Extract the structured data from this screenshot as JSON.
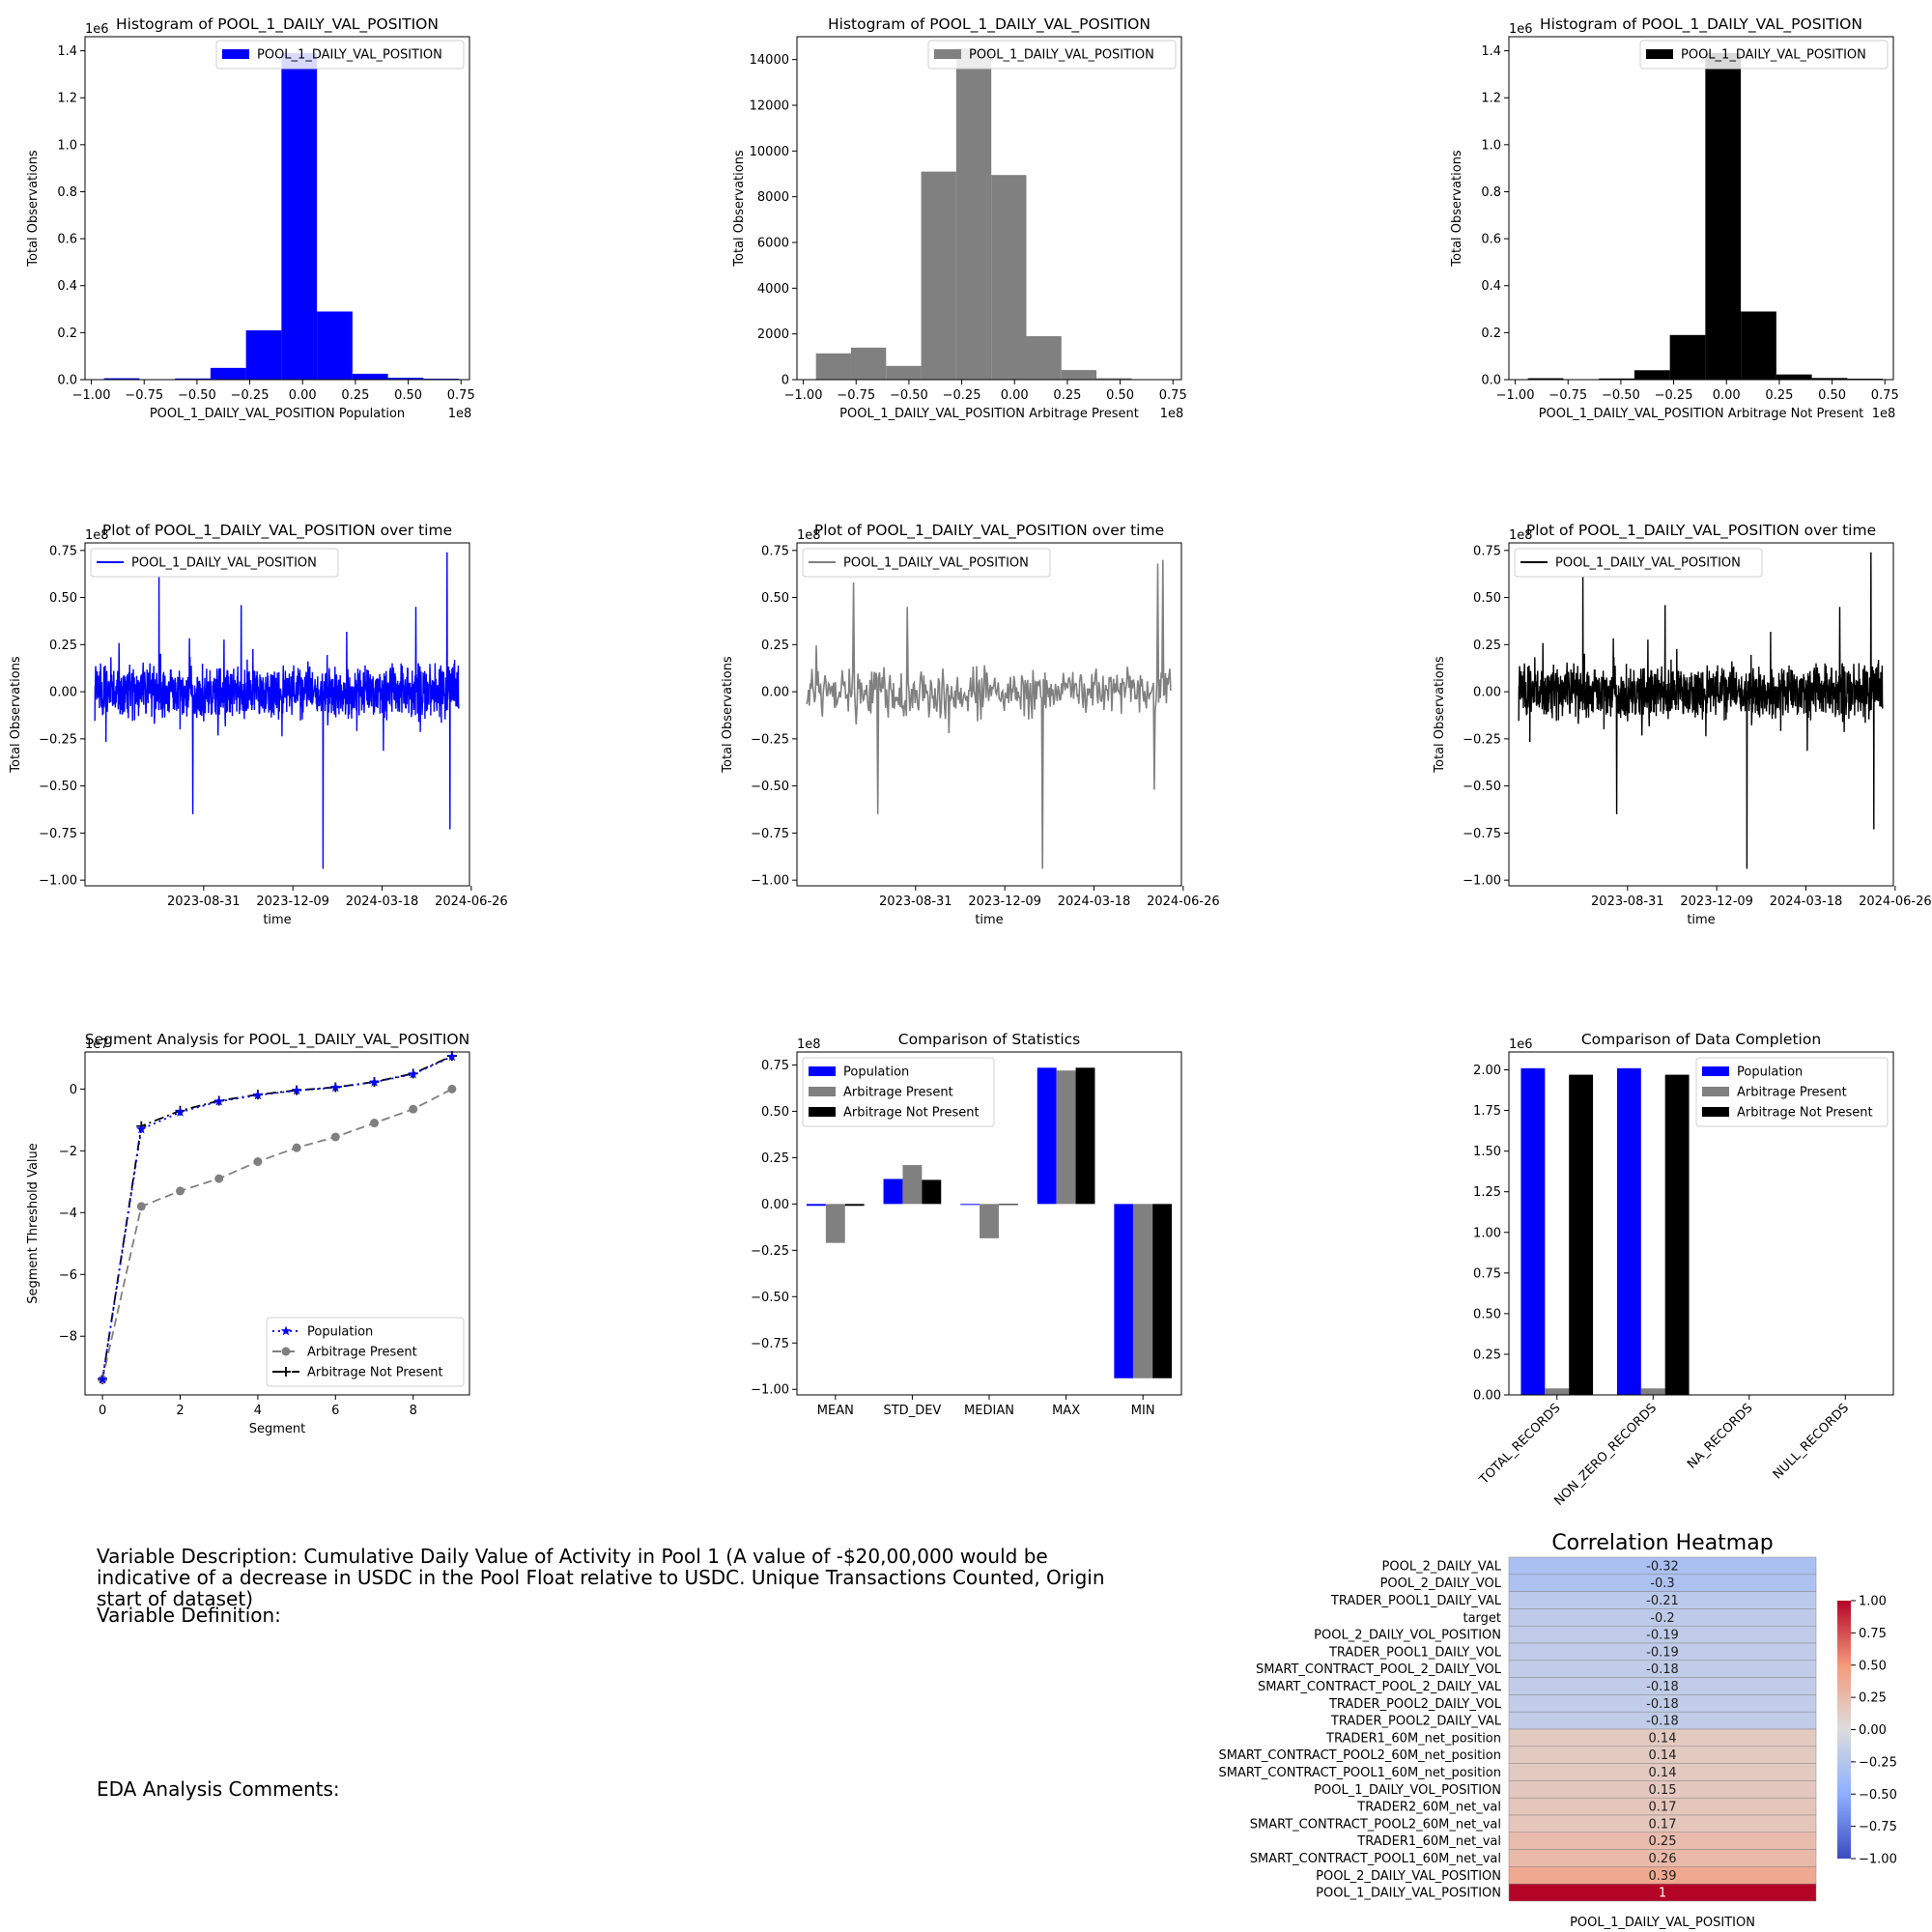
{
  "chart_data": [
    {
      "id": "hist_pop",
      "type": "bar",
      "title": "Histogram of POOL_1_DAILY_VAL_POSITION",
      "xlabel": "POOL_1_DAILY_VAL_POSITION Population",
      "ylabel": "Total Observations",
      "x_exponent": "1e8",
      "y_exponent": "1e6",
      "color": "#0000ff",
      "legend": "POOL_1_DAILY_VAL_POSITION",
      "legend_position": "upper-right",
      "xlim": [
        -1.03,
        0.79
      ],
      "ylim": [
        0,
        1.46
      ],
      "xticks": [
        -1.0,
        -0.75,
        -0.5,
        -0.25,
        0.0,
        0.25,
        0.5,
        0.75
      ],
      "xtick_labels": [
        "−1.00",
        "−0.75",
        "−0.50",
        "−0.25",
        "0.00",
        "0.25",
        "0.50",
        "0.75"
      ],
      "yticks": [
        0,
        0.2,
        0.4,
        0.6,
        0.8,
        1.0,
        1.2,
        1.4
      ],
      "ytick_labels": [
        "0.0",
        "0.2",
        "0.4",
        "0.6",
        "0.8",
        "1.0",
        "1.2",
        "1.4"
      ],
      "bin_edges": [
        -0.94,
        -0.772,
        -0.604,
        -0.436,
        -0.268,
        -0.1,
        0.068,
        0.236,
        0.404,
        0.572,
        0.74
      ],
      "values": [
        0.006,
        0.0,
        0.005,
        0.05,
        0.21,
        1.39,
        0.29,
        0.025,
        0.008,
        0.004
      ]
    },
    {
      "id": "hist_arb",
      "type": "bar",
      "title": "Histogram of POOL_1_DAILY_VAL_POSITION",
      "xlabel": "POOL_1_DAILY_VAL_POSITION Arbitrage Present",
      "ylabel": "Total Observations",
      "x_exponent": "1e8",
      "y_exponent": "",
      "color": "#808080",
      "legend": "POOL_1_DAILY_VAL_POSITION",
      "legend_position": "upper-right",
      "xlim": [
        -1.03,
        0.79
      ],
      "ylim": [
        0,
        15000
      ],
      "xticks": [
        -1.0,
        -0.75,
        -0.5,
        -0.25,
        0.0,
        0.25,
        0.5,
        0.75
      ],
      "xtick_labels": [
        "−1.00",
        "−0.75",
        "−0.50",
        "−0.25",
        "0.00",
        "0.25",
        "0.50",
        "0.75"
      ],
      "yticks": [
        0,
        2000,
        4000,
        6000,
        8000,
        10000,
        12000,
        14000
      ],
      "ytick_labels": [
        "0",
        "2000",
        "4000",
        "6000",
        "8000",
        "10000",
        "12000",
        "14000"
      ],
      "bin_edges": [
        -0.94,
        -0.774,
        -0.608,
        -0.442,
        -0.276,
        -0.11,
        0.056,
        0.222,
        0.388,
        0.554,
        0.72
      ],
      "values": [
        1150,
        1400,
        600,
        9100,
        14500,
        8950,
        1900,
        420,
        60,
        20
      ]
    },
    {
      "id": "hist_noarb",
      "type": "bar",
      "title": "Histogram of POOL_1_DAILY_VAL_POSITION",
      "xlabel": "POOL_1_DAILY_VAL_POSITION Arbitrage Not Present",
      "ylabel": "Total Observations",
      "x_exponent": "1e8",
      "y_exponent": "1e6",
      "color": "#000000",
      "legend": "POOL_1_DAILY_VAL_POSITION",
      "legend_position": "upper-right",
      "xlim": [
        -1.03,
        0.79
      ],
      "ylim": [
        0,
        1.46
      ],
      "xticks": [
        -1.0,
        -0.75,
        -0.5,
        -0.25,
        0.0,
        0.25,
        0.5,
        0.75
      ],
      "xtick_labels": [
        "−1.00",
        "−0.75",
        "−0.50",
        "−0.25",
        "0.00",
        "0.25",
        "0.50",
        "0.75"
      ],
      "yticks": [
        0,
        0.2,
        0.4,
        0.6,
        0.8,
        1.0,
        1.2,
        1.4
      ],
      "ytick_labels": [
        "0.0",
        "0.2",
        "0.4",
        "0.6",
        "0.8",
        "1.0",
        "1.2",
        "1.4"
      ],
      "bin_edges": [
        -0.94,
        -0.772,
        -0.604,
        -0.436,
        -0.268,
        -0.1,
        0.068,
        0.236,
        0.404,
        0.572,
        0.74
      ],
      "values": [
        0.006,
        0.0,
        0.005,
        0.04,
        0.19,
        1.39,
        0.29,
        0.022,
        0.007,
        0.004
      ]
    },
    {
      "id": "line_pop",
      "type": "line",
      "title": "Plot of POOL_1_DAILY_VAL_POSITION over time",
      "xlabel": "time",
      "ylabel": "Total Observations",
      "y_exponent": "1e8",
      "color": "#0000ff",
      "legend": "POOL_1_DAILY_VAL_POSITION",
      "legend_position": "upper-left",
      "x_range": [
        "2023-05-01",
        "2024-06-12"
      ],
      "xlim": [
        "2023-04-20",
        "2024-06-24"
      ],
      "ylim": [
        -1.03,
        0.79
      ],
      "xtick_labels": [
        "2023-08-31",
        "2023-12-09",
        "2024-03-18",
        "2024-06-26"
      ],
      "yticks": [
        -1.0,
        -0.75,
        -0.5,
        -0.25,
        0.0,
        0.25,
        0.5,
        0.75
      ],
      "ytick_labels": [
        "−1.00",
        "−0.75",
        "−0.50",
        "−0.25",
        "0.00",
        "0.25",
        "0.50",
        "0.75"
      ],
      "notable_points": [
        {
          "x": "2023-07-12",
          "y": 0.61
        },
        {
          "x": "2023-08-19",
          "y": -0.65
        },
        {
          "x": "2023-10-12",
          "y": 0.46
        },
        {
          "x": "2024-01-12",
          "y": -0.94
        },
        {
          "x": "2024-04-25",
          "y": 0.45
        },
        {
          "x": "2024-05-30",
          "y": 0.74
        },
        {
          "x": "2024-06-02",
          "y": -0.73
        }
      ],
      "noise_amplitude": 0.12
    },
    {
      "id": "line_arb",
      "type": "line",
      "title": "Plot of POOL_1_DAILY_VAL_POSITION over time",
      "xlabel": "time",
      "ylabel": "Total Observations",
      "y_exponent": "1e8",
      "color": "#808080",
      "legend": "POOL_1_DAILY_VAL_POSITION",
      "legend_position": "upper-left",
      "x_range": [
        "2023-05-01",
        "2024-06-12"
      ],
      "xlim": [
        "2023-04-20",
        "2024-06-24"
      ],
      "ylim": [
        -1.03,
        0.79
      ],
      "xtick_labels": [
        "2023-08-31",
        "2023-12-09",
        "2024-03-18",
        "2024-06-26"
      ],
      "yticks": [
        -1.0,
        -0.75,
        -0.5,
        -0.25,
        0.0,
        0.25,
        0.5,
        0.75
      ],
      "ytick_labels": [
        "−1.00",
        "−0.75",
        "−0.50",
        "−0.25",
        "0.00",
        "0.25",
        "0.50",
        "0.75"
      ],
      "notable_points": [
        {
          "x": "2023-06-22",
          "y": 0.58
        },
        {
          "x": "2023-07-20",
          "y": -0.65
        },
        {
          "x": "2023-08-22",
          "y": 0.45
        },
        {
          "x": "2024-01-20",
          "y": -0.94
        },
        {
          "x": "2024-05-28",
          "y": 0.68
        },
        {
          "x": "2024-06-03",
          "y": 0.7
        },
        {
          "x": "2024-05-25",
          "y": -0.52
        }
      ],
      "noise_amplitude": 0.11
    },
    {
      "id": "line_noarb",
      "type": "line",
      "title": "Plot of POOL_1_DAILY_VAL_POSITION over time",
      "xlabel": "time",
      "ylabel": "Total Observations",
      "y_exponent": "1e8",
      "color": "#000000",
      "legend": "POOL_1_DAILY_VAL_POSITION",
      "legend_position": "upper-left",
      "x_range": [
        "2023-05-01",
        "2024-06-12"
      ],
      "xlim": [
        "2023-04-20",
        "2024-06-24"
      ],
      "ylim": [
        -1.03,
        0.79
      ],
      "xtick_labels": [
        "2023-08-31",
        "2023-12-09",
        "2024-03-18",
        "2024-06-26"
      ],
      "yticks": [
        -1.0,
        -0.75,
        -0.5,
        -0.25,
        0.0,
        0.25,
        0.5,
        0.75
      ],
      "ytick_labels": [
        "−1.00",
        "−0.75",
        "−0.50",
        "−0.25",
        "0.00",
        "0.25",
        "0.50",
        "0.75"
      ],
      "notable_points": [
        {
          "x": "2023-07-12",
          "y": 0.61
        },
        {
          "x": "2023-08-19",
          "y": -0.65
        },
        {
          "x": "2023-10-12",
          "y": 0.46
        },
        {
          "x": "2024-01-12",
          "y": -0.94
        },
        {
          "x": "2024-04-25",
          "y": 0.45
        },
        {
          "x": "2024-05-30",
          "y": 0.74
        },
        {
          "x": "2024-06-02",
          "y": -0.73
        }
      ],
      "noise_amplitude": 0.12
    },
    {
      "id": "segments",
      "type": "line",
      "title": "Segment Analysis for POOL_1_DAILY_VAL_POSITION",
      "xlabel": "Segment",
      "ylabel": "Segment Threshold Value",
      "y_exponent": "1e7",
      "legend_position": "lower-right",
      "xlim": [
        -0.45,
        9.45
      ],
      "ylim": [
        -9.9,
        1.2
      ],
      "xticks": [
        0,
        2,
        4,
        6,
        8
      ],
      "xtick_labels": [
        "0",
        "2",
        "4",
        "6",
        "8"
      ],
      "yticks": [
        -8,
        -6,
        -4,
        -2,
        0
      ],
      "ytick_labels": [
        "−8",
        "−6",
        "−4",
        "−2",
        "0"
      ],
      "x": [
        0,
        1,
        2,
        3,
        4,
        5,
        6,
        7,
        8,
        9
      ],
      "series": [
        {
          "name": "Population",
          "color": "#0000ff",
          "dash": "2,4",
          "marker": "star",
          "values": [
            -9.4,
            -1.3,
            -0.75,
            -0.4,
            -0.2,
            -0.05,
            0.05,
            0.22,
            0.48,
            1.05
          ]
        },
        {
          "name": "Arbitrage Present",
          "color": "#808080",
          "dash": "9,5",
          "marker": "circle",
          "values": [
            -9.4,
            -3.8,
            -3.3,
            -2.9,
            -2.35,
            -1.9,
            -1.55,
            -1.1,
            -0.65,
            0.0
          ]
        },
        {
          "name": "Arbitrage Not Present",
          "color": "#000000",
          "dash": "10,4,2,4",
          "marker": "plus",
          "values": [
            -9.4,
            -1.2,
            -0.7,
            -0.38,
            -0.18,
            -0.04,
            0.06,
            0.23,
            0.5,
            1.07
          ]
        }
      ]
    },
    {
      "id": "stats",
      "type": "bar",
      "title": "Comparison of Statistics",
      "y_exponent": "1e8",
      "legend_position": "upper-left",
      "ylim": [
        -1.03,
        0.82
      ],
      "yticks": [
        -1.0,
        -0.75,
        -0.5,
        -0.25,
        0.0,
        0.25,
        0.5,
        0.75
      ],
      "ytick_labels": [
        "−1.00",
        "−0.75",
        "−0.50",
        "−0.25",
        "0.00",
        "0.25",
        "0.50",
        "0.75"
      ],
      "categories": [
        "MEAN",
        "STD_DEV",
        "MEDIAN",
        "MAX",
        "MIN"
      ],
      "series": [
        {
          "name": "Population",
          "color": "#0000ff",
          "values": [
            -0.01,
            0.135,
            -0.005,
            0.735,
            -0.94
          ]
        },
        {
          "name": "Arbitrage Present",
          "color": "#808080",
          "values": [
            -0.21,
            0.21,
            -0.185,
            0.72,
            -0.94
          ]
        },
        {
          "name": "Arbitrage Not Present",
          "color": "#000000",
          "values": [
            -0.01,
            0.13,
            -0.005,
            0.735,
            -0.94
          ]
        }
      ]
    },
    {
      "id": "completion",
      "type": "bar",
      "title": "Comparison of Data Completion",
      "y_exponent": "1e6",
      "legend_position": "upper-right",
      "ylim": [
        0,
        2.11
      ],
      "yticks": [
        0,
        0.25,
        0.5,
        0.75,
        1.0,
        1.25,
        1.5,
        1.75,
        2.0
      ],
      "ytick_labels": [
        "0.00",
        "0.25",
        "0.50",
        "0.75",
        "1.00",
        "1.25",
        "1.50",
        "1.75",
        "2.00"
      ],
      "categories": [
        "TOTAL_RECORDS",
        "NON_ZERO_RECORDS",
        "NA_RECORDS",
        "NULL_RECORDS"
      ],
      "series": [
        {
          "name": "Population",
          "color": "#0000ff",
          "values": [
            2.01,
            2.01,
            0,
            0
          ]
        },
        {
          "name": "Arbitrage Present",
          "color": "#808080",
          "values": [
            0.04,
            0.04,
            0,
            0
          ]
        },
        {
          "name": "Arbitrage Not Present",
          "color": "#000000",
          "values": [
            1.97,
            1.97,
            0,
            0
          ]
        }
      ]
    },
    {
      "id": "heatmap",
      "type": "heatmap",
      "title": "Correlation Heatmap",
      "xlabel": "POOL_1_DAILY_VAL_POSITION",
      "colormap": "coolwarm",
      "vmin": -1.0,
      "vmax": 1.0,
      "colorbar_ticks": [
        1.0,
        0.75,
        0.5,
        0.25,
        0.0,
        -0.25,
        -0.5,
        -0.75,
        -1.0
      ],
      "colorbar_tick_labels": [
        "1.00",
        "0.75",
        "0.50",
        "0.25",
        "0.00",
        "−0.25",
        "−0.50",
        "−0.75",
        "−1.00"
      ],
      "rows": [
        {
          "label": "POOL_2_DAILY_VAL",
          "value": -0.32,
          "text": "-0.32"
        },
        {
          "label": "POOL_2_DAILY_VOL",
          "value": -0.3,
          "text": "-0.3"
        },
        {
          "label": "TRADER_POOL1_DAILY_VAL",
          "value": -0.21,
          "text": "-0.21"
        },
        {
          "label": "target",
          "value": -0.2,
          "text": "-0.2"
        },
        {
          "label": "POOL_2_DAILY_VOL_POSITION",
          "value": -0.19,
          "text": "-0.19"
        },
        {
          "label": "TRADER_POOL1_DAILY_VOL",
          "value": -0.19,
          "text": "-0.19"
        },
        {
          "label": "SMART_CONTRACT_POOL_2_DAILY_VOL",
          "value": -0.18,
          "text": "-0.18"
        },
        {
          "label": "SMART_CONTRACT_POOL_2_DAILY_VAL",
          "value": -0.18,
          "text": "-0.18"
        },
        {
          "label": "TRADER_POOL2_DAILY_VOL",
          "value": -0.18,
          "text": "-0.18"
        },
        {
          "label": "TRADER_POOL2_DAILY_VAL",
          "value": -0.18,
          "text": "-0.18"
        },
        {
          "label": "TRADER1_60M_net_position",
          "value": 0.14,
          "text": "0.14"
        },
        {
          "label": "SMART_CONTRACT_POOL2_60M_net_position",
          "value": 0.14,
          "text": "0.14"
        },
        {
          "label": "SMART_CONTRACT_POOL1_60M_net_position",
          "value": 0.14,
          "text": "0.14"
        },
        {
          "label": "POOL_1_DAILY_VOL_POSITION",
          "value": 0.15,
          "text": "0.15"
        },
        {
          "label": "TRADER2_60M_net_val",
          "value": 0.17,
          "text": "0.17"
        },
        {
          "label": "SMART_CONTRACT_POOL2_60M_net_val",
          "value": 0.17,
          "text": "0.17"
        },
        {
          "label": "TRADER1_60M_net_val",
          "value": 0.25,
          "text": "0.25"
        },
        {
          "label": "SMART_CONTRACT_POOL1_60M_net_val",
          "value": 0.26,
          "text": "0.26"
        },
        {
          "label": "POOL_2_DAILY_VAL_POSITION",
          "value": 0.39,
          "text": "0.39"
        },
        {
          "label": "POOL_1_DAILY_VAL_POSITION",
          "value": 1.0,
          "text": "1"
        }
      ]
    }
  ],
  "text": {
    "description": "Variable Description: Cumulative Daily Value of Activity in Pool 1 (A value of -$20,00,000 would be indicative of a decrease in USDC  in the Pool Float relative to USDC.  Unique Transactions Counted, Origin start of dataset)",
    "definition": "Variable Definition:",
    "comments": "EDA Analysis Comments:"
  }
}
